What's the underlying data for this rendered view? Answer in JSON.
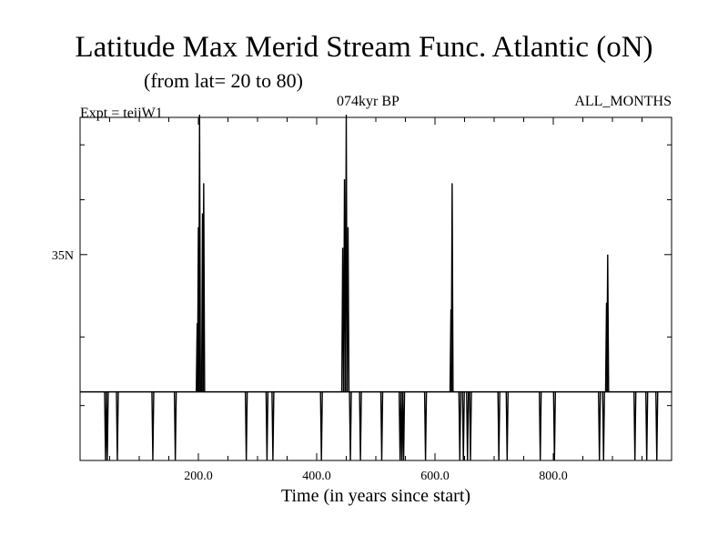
{
  "header": {
    "title": "Latitude Max Merid Stream Func. Atlantic (oN)",
    "subtitle": "(from lat= 20 to 80)",
    "expt": "Expt = teiiW1",
    "center_label": "074kyr BP",
    "months": "ALL_MONTHS"
  },
  "chart_data": {
    "type": "line",
    "xlabel": "Time (in years since start)",
    "ylabel": "",
    "xlim": [
      0,
      1000
    ],
    "ylim": [
      20,
      45
    ],
    "baseline": 25,
    "x_ticks": [
      {
        "value": 200,
        "label": "200.0"
      },
      {
        "value": 400,
        "label": "400.0"
      },
      {
        "value": 600,
        "label": "600.0"
      },
      {
        "value": 800,
        "label": "800.0"
      }
    ],
    "y_ticks": [
      {
        "value": 35,
        "label": "35N"
      }
    ],
    "y_minor_ticks": [
      24,
      29,
      39,
      43
    ],
    "series": [
      {
        "spikes": [
          {
            "x": 43,
            "y": 20
          },
          {
            "x": 46,
            "y": 20
          },
          {
            "x": 63,
            "y": 20
          },
          {
            "x": 123,
            "y": 20
          },
          {
            "x": 161,
            "y": 20
          },
          {
            "x": 198,
            "y": 30
          },
          {
            "x": 200,
            "y": 37
          },
          {
            "x": 202,
            "y": 45.2
          },
          {
            "x": 207,
            "y": 38
          },
          {
            "x": 209,
            "y": 40.2
          },
          {
            "x": 281,
            "y": 20
          },
          {
            "x": 316,
            "y": 20
          },
          {
            "x": 326,
            "y": 20
          },
          {
            "x": 408,
            "y": 20
          },
          {
            "x": 444,
            "y": 35.5
          },
          {
            "x": 447,
            "y": 40.5
          },
          {
            "x": 450,
            "y": 45.2
          },
          {
            "x": 453,
            "y": 37
          },
          {
            "x": 457,
            "y": 20
          },
          {
            "x": 474,
            "y": 20
          },
          {
            "x": 510,
            "y": 20
          },
          {
            "x": 541,
            "y": 20
          },
          {
            "x": 544,
            "y": 20
          },
          {
            "x": 547,
            "y": 20
          },
          {
            "x": 584,
            "y": 20
          },
          {
            "x": 627,
            "y": 31
          },
          {
            "x": 629,
            "y": 40.2
          },
          {
            "x": 642,
            "y": 20
          },
          {
            "x": 648,
            "y": 20
          },
          {
            "x": 655,
            "y": 20
          },
          {
            "x": 660,
            "y": 20
          },
          {
            "x": 708,
            "y": 20
          },
          {
            "x": 722,
            "y": 20
          },
          {
            "x": 778,
            "y": 20
          },
          {
            "x": 802,
            "y": 20
          },
          {
            "x": 878,
            "y": 20
          },
          {
            "x": 885,
            "y": 20
          },
          {
            "x": 890,
            "y": 31.5
          },
          {
            "x": 892,
            "y": 35
          },
          {
            "x": 938,
            "y": 20
          },
          {
            "x": 958,
            "y": 20
          },
          {
            "x": 975,
            "y": 20
          }
        ]
      }
    ]
  }
}
